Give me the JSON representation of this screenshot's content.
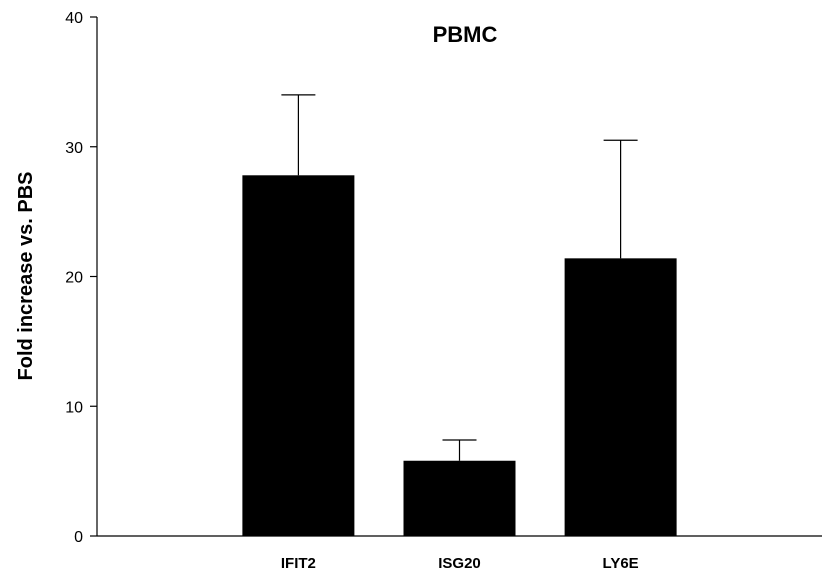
{
  "chart_data": {
    "type": "bar",
    "title": "PBMC",
    "xlabel": "",
    "ylabel": "Fold increase vs. PBS",
    "categories": [
      "IFIT2",
      "ISG20",
      "LY6E"
    ],
    "values": [
      27.8,
      5.8,
      21.4
    ],
    "error_upper": [
      34.0,
      7.4,
      30.5
    ],
    "ylim": [
      0,
      40
    ],
    "yticks": [
      "0",
      "10",
      "20",
      "30",
      "40"
    ],
    "grid": false,
    "bar_color": "#000000"
  }
}
